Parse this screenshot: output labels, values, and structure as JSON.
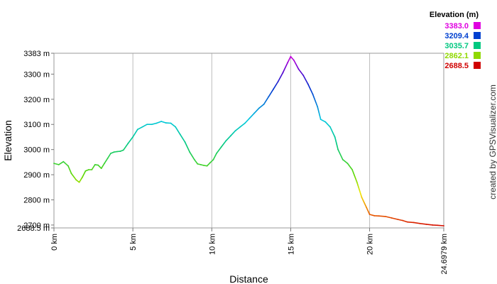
{
  "chart_data": {
    "type": "line",
    "title": "",
    "xlabel": "Distance",
    "ylabel": "Elevation",
    "xlim": [
      0,
      24.6979
    ],
    "ylim": [
      2688.5,
      3383
    ],
    "grid": "vertical lines at x ticks",
    "x_ticks": [
      {
        "value": 0,
        "label": "0 km"
      },
      {
        "value": 5,
        "label": "5 km"
      },
      {
        "value": 10,
        "label": "10 km"
      },
      {
        "value": 15,
        "label": "15 km"
      },
      {
        "value": 20,
        "label": "20 km"
      },
      {
        "value": 24.6979,
        "label": "24.6979 km"
      }
    ],
    "y_ticks": [
      {
        "value": 2688.5,
        "label": "2688.5 m"
      },
      {
        "value": 2700,
        "label": "2700 m"
      },
      {
        "value": 2800,
        "label": "2800 m"
      },
      {
        "value": 2900,
        "label": "2900 m"
      },
      {
        "value": 3000,
        "label": "3000 m"
      },
      {
        "value": 3100,
        "label": "3100 m"
      },
      {
        "value": 3200,
        "label": "3200 m"
      },
      {
        "value": 3300,
        "label": "3300 m"
      },
      {
        "value": 3383,
        "label": "3383 m"
      }
    ],
    "legend": {
      "title": "Elevation (m)",
      "placement": "top-right",
      "entries": [
        {
          "label": "3383.0",
          "color": "#e000e0"
        },
        {
          "label": "3209.4",
          "color": "#0040d0"
        },
        {
          "label": "3035.7",
          "color": "#00c880"
        },
        {
          "label": "2862.1",
          "color": "#90d800"
        },
        {
          "label": "2688.5",
          "color": "#d00000"
        }
      ]
    },
    "series": [
      {
        "x": [
          0,
          0.3,
          0.6,
          0.9,
          1.1,
          1.4,
          1.6,
          1.8,
          2.0,
          2.2,
          2.4,
          2.6,
          2.8,
          3.0,
          3.2,
          3.4,
          3.6,
          3.8,
          4.0,
          4.2,
          4.4,
          4.7,
          5.0,
          5.3,
          5.6,
          5.9,
          6.2,
          6.5,
          6.8,
          7.1,
          7.4,
          7.7,
          8.0,
          8.3,
          8.6,
          8.9,
          9.1,
          9.3,
          9.5,
          9.7,
          9.9,
          10.1,
          10.3,
          10.6,
          10.9,
          11.2,
          11.5,
          11.8,
          12.1,
          12.4,
          12.7,
          13.0,
          13.3,
          13.6,
          13.9,
          14.2,
          14.5,
          14.8,
          15.0,
          15.2,
          15.5,
          15.8,
          16.1,
          16.4,
          16.7,
          16.9,
          17.2,
          17.5,
          17.8,
          18.0,
          18.3,
          18.6,
          18.9,
          19.2,
          19.5,
          19.8,
          20.0,
          20.3,
          20.6,
          21.0,
          21.4,
          21.8,
          22.1,
          22.4,
          22.8,
          23.2,
          23.6,
          24.0,
          24.3,
          24.6979
        ],
        "y": [
          2945,
          2940,
          2952,
          2935,
          2905,
          2880,
          2870,
          2890,
          2915,
          2920,
          2920,
          2940,
          2938,
          2925,
          2945,
          2965,
          2985,
          2990,
          2992,
          2993,
          2998,
          3025,
          3050,
          3080,
          3090,
          3100,
          3100,
          3105,
          3112,
          3106,
          3105,
          3090,
          3060,
          3030,
          2990,
          2960,
          2943,
          2940,
          2937,
          2935,
          2948,
          2960,
          2985,
          3010,
          3035,
          3055,
          3075,
          3090,
          3105,
          3125,
          3145,
          3165,
          3180,
          3210,
          3240,
          3270,
          3305,
          3345,
          3370,
          3355,
          3320,
          3295,
          3260,
          3220,
          3170,
          3120,
          3110,
          3090,
          3050,
          3000,
          2960,
          2945,
          2920,
          2870,
          2810,
          2770,
          2742,
          2737,
          2736,
          2734,
          2728,
          2722,
          2718,
          2712,
          2710,
          2706,
          2703,
          2700,
          2699,
          2697
        ]
      }
    ]
  },
  "credit": "created by GPSVisualizer.com"
}
